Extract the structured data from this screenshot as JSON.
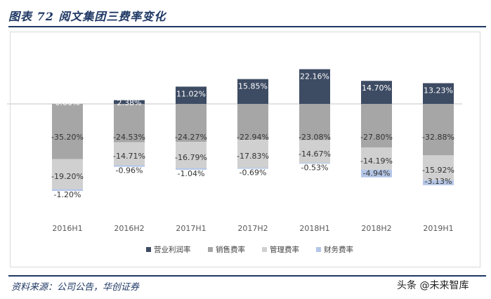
{
  "figure": {
    "title": "图表 72   阅文集团三费率变化",
    "source": "资料来源：公司公告，华创证券",
    "watermark": "头条 @未来智库"
  },
  "chart_data": {
    "type": "bar",
    "stacked": true,
    "categories": [
      "2016H1",
      "2016H2",
      "2017H1",
      "2017H2",
      "2018H1",
      "2018H2",
      "2019H1"
    ],
    "series": [
      {
        "name": "营业利润率",
        "color": "#3d4b63",
        "values": [
          0.0,
          2.38,
          11.02,
          15.85,
          22.16,
          14.7,
          13.23
        ],
        "labels": [
          "0.00%",
          "2.38%",
          "11.02%",
          "15.85%",
          "22.16%",
          "14.70%",
          "13.23%"
        ]
      },
      {
        "name": "销售费率",
        "color": "#a6a6a6",
        "values": [
          -35.2,
          -24.53,
          -24.27,
          -22.94,
          -23.08,
          -27.8,
          -32.88
        ],
        "labels": [
          "-35.20%",
          "-24.53%",
          "-24.27%",
          "-22.94%",
          "-23.08%",
          "-27.80%",
          "-32.88%"
        ]
      },
      {
        "name": "管理费率",
        "color": "#d0d0d0",
        "values": [
          -19.2,
          -14.71,
          -16.79,
          -17.83,
          -14.67,
          -14.19,
          -15.92
        ],
        "labels": [
          "-19.20%",
          "-14.71%",
          "-16.79%",
          "-17.83%",
          "-14.67%",
          "-14.19%",
          "-15.92%"
        ]
      },
      {
        "name": "财务费率",
        "color": "#b4c6e7",
        "values": [
          -1.2,
          -0.96,
          -1.04,
          -0.69,
          -0.53,
          -4.94,
          -3.13
        ],
        "labels": [
          "-1.20%",
          "-0.96%",
          "-1.04%",
          "-0.69%",
          "-0.53%",
          "-4.94%",
          "-3.13%"
        ]
      }
    ],
    "ylim": [
      -60,
      25
    ],
    "grid": false,
    "legend_position": "bottom"
  }
}
